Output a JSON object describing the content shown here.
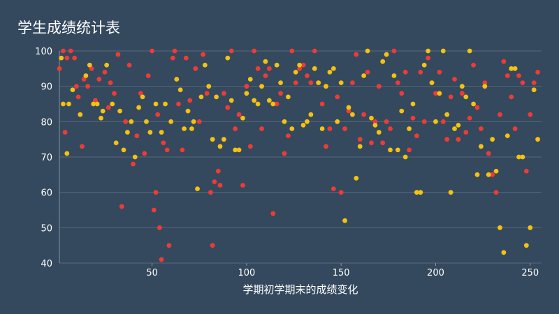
{
  "chart_data": {
    "type": "scatter",
    "title": "学生成绩统计表",
    "xlabel": "学期初学期末的成绩变化",
    "ylabel": "",
    "xlim": [
      1,
      256
    ],
    "ylim": [
      40,
      100
    ],
    "xticks": [
      50,
      100,
      150,
      200,
      250
    ],
    "yticks": [
      40,
      50,
      60,
      70,
      80,
      90,
      100
    ],
    "grid": "horizontal",
    "legend": "none",
    "series": [
      {
        "color": "#ef3b36",
        "points": [
          [
            1,
            95
          ],
          [
            3,
            100
          ],
          [
            4,
            77
          ],
          [
            5,
            98
          ],
          [
            7,
            100
          ],
          [
            9,
            98
          ],
          [
            10,
            90
          ],
          [
            11,
            87
          ],
          [
            13,
            73
          ],
          [
            14,
            92
          ],
          [
            16,
            90
          ],
          [
            18,
            95
          ],
          [
            20,
            86
          ],
          [
            22,
            92
          ],
          [
            25,
            94
          ],
          [
            27,
            84
          ],
          [
            28,
            91
          ],
          [
            30,
            88
          ],
          [
            32,
            99
          ],
          [
            34,
            56
          ],
          [
            36,
            80
          ],
          [
            38,
            96
          ],
          [
            40,
            68
          ],
          [
            42,
            76
          ],
          [
            44,
            88
          ],
          [
            46,
            71
          ],
          [
            48,
            93
          ],
          [
            50,
            100
          ],
          [
            51,
            55
          ],
          [
            52,
            60
          ],
          [
            53,
            82
          ],
          [
            54,
            50
          ],
          [
            55,
            41
          ],
          [
            56,
            74
          ],
          [
            58,
            72
          ],
          [
            59,
            45
          ],
          [
            61,
            98
          ],
          [
            62,
            100
          ],
          [
            64,
            85
          ],
          [
            66,
            72
          ],
          [
            68,
            98
          ],
          [
            70,
            86
          ],
          [
            73,
            95
          ],
          [
            75,
            80
          ],
          [
            77,
            99
          ],
          [
            79,
            88
          ],
          [
            81,
            60
          ],
          [
            82,
            45
          ],
          [
            83,
            63
          ],
          [
            85,
            66
          ],
          [
            86,
            62
          ],
          [
            88,
            88
          ],
          [
            90,
            84
          ],
          [
            92,
            100
          ],
          [
            94,
            78
          ],
          [
            96,
            82
          ],
          [
            98,
            62
          ],
          [
            100,
            90
          ],
          [
            102,
            73
          ],
          [
            104,
            100
          ],
          [
            106,
            95
          ],
          [
            108,
            78
          ],
          [
            110,
            93
          ],
          [
            112,
            95
          ],
          [
            114,
            54
          ],
          [
            116,
            85
          ],
          [
            118,
            88
          ],
          [
            120,
            71
          ],
          [
            122,
            76
          ],
          [
            124,
            100
          ],
          [
            126,
            91
          ],
          [
            128,
            95
          ],
          [
            130,
            96
          ],
          [
            132,
            93
          ],
          [
            134,
            91
          ],
          [
            136,
            100
          ],
          [
            138,
            91
          ],
          [
            140,
            85
          ],
          [
            142,
            73
          ],
          [
            144,
            78
          ],
          [
            146,
            61
          ],
          [
            148,
            87
          ],
          [
            150,
            60
          ],
          [
            152,
            78
          ],
          [
            154,
            83
          ],
          [
            156,
            91
          ],
          [
            158,
            99
          ],
          [
            160,
            75
          ],
          [
            162,
            82
          ],
          [
            164,
            94
          ],
          [
            166,
            74
          ],
          [
            168,
            80
          ],
          [
            170,
            90
          ],
          [
            172,
            74
          ],
          [
            174,
            80
          ],
          [
            176,
            78
          ],
          [
            178,
            100
          ],
          [
            180,
            91
          ],
          [
            182,
            88
          ],
          [
            184,
            94
          ],
          [
            186,
            72
          ],
          [
            188,
            81
          ],
          [
            190,
            76
          ],
          [
            192,
            94
          ],
          [
            194,
            80
          ],
          [
            196,
            98
          ],
          [
            198,
            91
          ],
          [
            200,
            88
          ],
          [
            202,
            94
          ],
          [
            204,
            80
          ],
          [
            206,
            75
          ],
          [
            208,
            87
          ],
          [
            210,
            92
          ],
          [
            212,
            75
          ],
          [
            214,
            88
          ],
          [
            216,
            77
          ],
          [
            218,
            81
          ],
          [
            220,
            96
          ],
          [
            222,
            84
          ],
          [
            224,
            78
          ],
          [
            226,
            91
          ],
          [
            228,
            71
          ],
          [
            230,
            65
          ],
          [
            232,
            60
          ],
          [
            234,
            82
          ],
          [
            236,
            97
          ],
          [
            238,
            93
          ],
          [
            240,
            87
          ],
          [
            242,
            78
          ],
          [
            244,
            93
          ],
          [
            246,
            91
          ],
          [
            248,
            66
          ],
          [
            250,
            82
          ],
          [
            252,
            91
          ],
          [
            254,
            94
          ]
        ]
      },
      {
        "color": "#f5c20f",
        "points": [
          [
            2,
            98
          ],
          [
            3,
            85
          ],
          [
            5,
            71
          ],
          [
            6,
            85
          ],
          [
            8,
            89
          ],
          [
            12,
            82
          ],
          [
            15,
            93
          ],
          [
            17,
            96
          ],
          [
            19,
            85
          ],
          [
            21,
            85
          ],
          [
            23,
            81
          ],
          [
            24,
            83
          ],
          [
            26,
            96
          ],
          [
            29,
            85
          ],
          [
            31,
            74
          ],
          [
            33,
            83
          ],
          [
            35,
            72
          ],
          [
            37,
            77
          ],
          [
            39,
            80
          ],
          [
            41,
            70
          ],
          [
            43,
            84
          ],
          [
            45,
            87
          ],
          [
            47,
            80
          ],
          [
            49,
            77
          ],
          [
            52,
            85
          ],
          [
            55,
            77
          ],
          [
            57,
            85
          ],
          [
            60,
            80
          ],
          [
            63,
            92
          ],
          [
            65,
            89
          ],
          [
            67,
            78
          ],
          [
            69,
            83
          ],
          [
            71,
            78
          ],
          [
            72,
            80
          ],
          [
            74,
            61
          ],
          [
            76,
            87
          ],
          [
            78,
            96
          ],
          [
            80,
            90
          ],
          [
            82,
            75
          ],
          [
            84,
            87
          ],
          [
            86,
            73
          ],
          [
            88,
            75
          ],
          [
            90,
            98
          ],
          [
            92,
            86
          ],
          [
            94,
            72
          ],
          [
            96,
            72
          ],
          [
            98,
            81
          ],
          [
            100,
            88
          ],
          [
            102,
            92
          ],
          [
            104,
            86
          ],
          [
            106,
            85
          ],
          [
            108,
            90
          ],
          [
            110,
            97
          ],
          [
            112,
            86
          ],
          [
            114,
            85
          ],
          [
            116,
            96
          ],
          [
            118,
            91
          ],
          [
            120,
            80
          ],
          [
            122,
            87
          ],
          [
            124,
            78
          ],
          [
            126,
            94
          ],
          [
            128,
            96
          ],
          [
            130,
            79
          ],
          [
            132,
            80
          ],
          [
            134,
            82
          ],
          [
            136,
            95
          ],
          [
            138,
            91
          ],
          [
            140,
            78
          ],
          [
            142,
            90
          ],
          [
            144,
            94
          ],
          [
            146,
            95
          ],
          [
            148,
            80
          ],
          [
            150,
            91
          ],
          [
            152,
            52
          ],
          [
            154,
            84
          ],
          [
            156,
            82
          ],
          [
            158,
            64
          ],
          [
            160,
            73
          ],
          [
            162,
            93
          ],
          [
            164,
            100
          ],
          [
            166,
            81
          ],
          [
            168,
            79
          ],
          [
            170,
            77
          ],
          [
            172,
            97
          ],
          [
            174,
            99
          ],
          [
            176,
            72
          ],
          [
            178,
            93
          ],
          [
            180,
            72
          ],
          [
            182,
            83
          ],
          [
            184,
            70
          ],
          [
            186,
            78
          ],
          [
            188,
            85
          ],
          [
            190,
            60
          ],
          [
            192,
            60
          ],
          [
            194,
            96
          ],
          [
            196,
            100
          ],
          [
            198,
            91
          ],
          [
            200,
            80
          ],
          [
            202,
            88
          ],
          [
            204,
            100
          ],
          [
            206,
            82
          ],
          [
            208,
            60
          ],
          [
            210,
            78
          ],
          [
            212,
            79
          ],
          [
            214,
            90
          ],
          [
            216,
            87
          ],
          [
            218,
            100
          ],
          [
            220,
            85
          ],
          [
            222,
            65
          ],
          [
            224,
            73
          ],
          [
            226,
            90
          ],
          [
            228,
            65
          ],
          [
            230,
            75
          ],
          [
            232,
            66
          ],
          [
            234,
            50
          ],
          [
            236,
            43
          ],
          [
            238,
            76
          ],
          [
            240,
            95
          ],
          [
            242,
            95
          ],
          [
            244,
            70
          ],
          [
            246,
            70
          ],
          [
            248,
            45
          ],
          [
            250,
            50
          ],
          [
            252,
            89
          ],
          [
            254,
            75
          ]
        ]
      }
    ]
  }
}
